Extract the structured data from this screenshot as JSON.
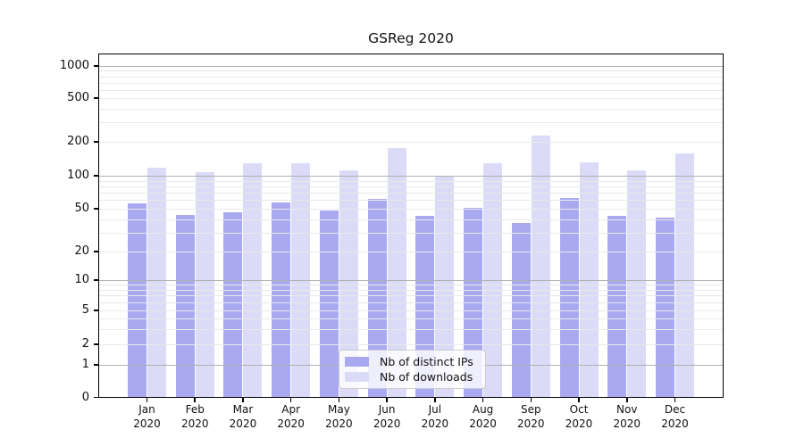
{
  "chart_data": {
    "type": "bar",
    "title": "GSReg 2020",
    "categories": [
      "Jan",
      "Feb",
      "Mar",
      "Apr",
      "May",
      "Jun",
      "Jul",
      "Aug",
      "Sep",
      "Oct",
      "Nov",
      "Dec"
    ],
    "year": "2020",
    "series": [
      {
        "name": "Nb of distinct IPs",
        "color": "#a9a9f0",
        "values": [
          56,
          44,
          46,
          57,
          48,
          61,
          43,
          51,
          37,
          63,
          43,
          41
        ]
      },
      {
        "name": "Nb of downloads",
        "color": "#dbdbf8",
        "values": [
          118,
          108,
          130,
          128,
          112,
          175,
          100,
          130,
          230,
          132,
          112,
          158
        ]
      }
    ],
    "yscale": "symlog",
    "y_tick_values": [
      0,
      1,
      2,
      5,
      10,
      20,
      50,
      100,
      200,
      500,
      1000
    ],
    "y_tick_labels": [
      "0",
      "1",
      "2",
      "5",
      "10",
      "20",
      "50",
      "100",
      "200",
      "500",
      "1000"
    ],
    "ylim": [
      0,
      1300
    ],
    "grid": "on",
    "grid_major_color": "#b0b0b0",
    "grid_minor_color": "#e9e9e9",
    "legend_position": "lower center"
  }
}
